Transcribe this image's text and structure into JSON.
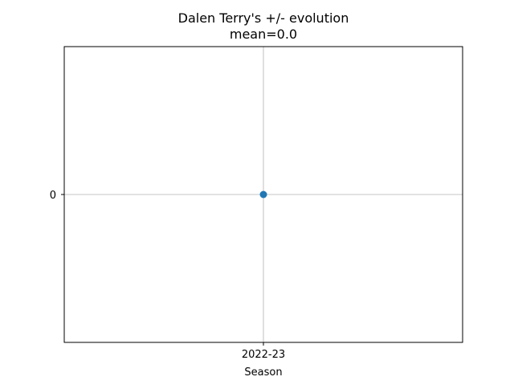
{
  "chart_data": {
    "type": "line",
    "title": "Dalen Terry's +/- evolution",
    "subtitle": "mean=0.0",
    "xlabel": "Season",
    "ylabel": "",
    "categories": [
      "2022-23"
    ],
    "y_ticks": [
      0
    ],
    "series": [
      {
        "values": [
          0
        ],
        "color": "#1f77b4",
        "marker": "circle"
      }
    ],
    "grid": true,
    "legend": "none"
  }
}
